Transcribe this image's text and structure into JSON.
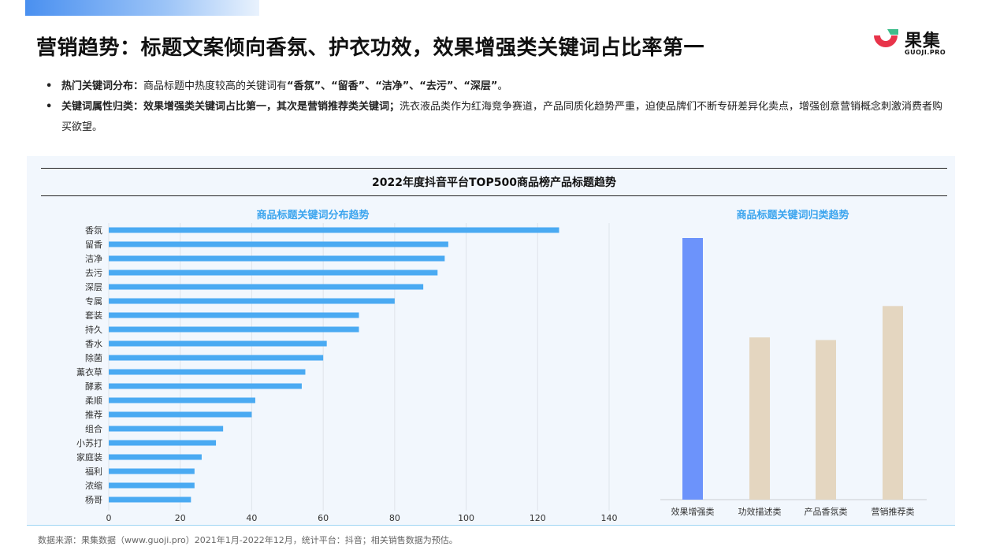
{
  "header": {
    "title": "营销趋势：标题文案倾向香氛、护衣功效，效果增强类关键词占比率第一",
    "logo_cn": "果集",
    "logo_en": "GUOJI.PRO"
  },
  "bullets": [
    {
      "strong": "热门关键词分布：",
      "text_parts": [
        {
          "t": "商品标题中热度较高的关键词有",
          "b": false
        },
        {
          "t": "“香氛”、“留香”、“洁净”、“去污”、“深层”",
          "b": true
        },
        {
          "t": "。",
          "b": false
        }
      ]
    },
    {
      "strong": "关键词属性归类：",
      "text_parts": [
        {
          "t": "效果增强类关键词占比第一，其次是营销推荐类关键词；",
          "b": true
        },
        {
          "t": "洗衣液品类作为红海竞争赛道，产品同质化趋势严重，迫使品牌们不断专研差异化卖点，增强创意营销概念刺激消费者购买欲望。",
          "b": false
        }
      ]
    }
  ],
  "chart_section_title": "2022年度抖音平台TOP500商品榜产品标题趋势",
  "chart_data": [
    {
      "type": "bar",
      "orientation": "horizontal",
      "title": "商品标题关键词分布趋势",
      "categories": [
        "香氛",
        "留香",
        "洁净",
        "去污",
        "深层",
        "专属",
        "套装",
        "持久",
        "香水",
        "除菌",
        "薰衣草",
        "酵素",
        "柔顺",
        "推荐",
        "组合",
        "小苏打",
        "家庭装",
        "福利",
        "浓缩",
        "杨哥"
      ],
      "values": [
        126,
        95,
        94,
        92,
        88,
        80,
        70,
        70,
        61,
        60,
        55,
        54,
        41,
        40,
        32,
        30,
        26,
        24,
        24,
        23
      ],
      "xlim": [
        0,
        140
      ],
      "xticks": [
        0,
        20,
        40,
        60,
        80,
        100,
        120,
        140
      ],
      "grid": true,
      "color": "#4aaaf2"
    },
    {
      "type": "bar",
      "title": "商品标题关键词归类趋势",
      "categories": [
        "效果增强类",
        "功效描述类",
        "产品香氛类",
        "营销推荐类"
      ],
      "values": [
        100,
        62,
        61,
        74
      ],
      "colors": [
        "#6c93fb",
        "#e4d6c0",
        "#e4d6c0",
        "#e4d6c0"
      ],
      "grid": false
    }
  ],
  "footer": "数据来源：果集数据（www.guoji.pro）2021年1月-2022年12月，统计平台：抖音；相关销售数据为预估。",
  "colors": {
    "title_accent_bar": "#4a90f0",
    "chart_bg": "#f2f7fd",
    "subtitle_blue": "#3aa4ee",
    "logo_red": "#e8344a",
    "logo_green": "#3ebd8b"
  }
}
